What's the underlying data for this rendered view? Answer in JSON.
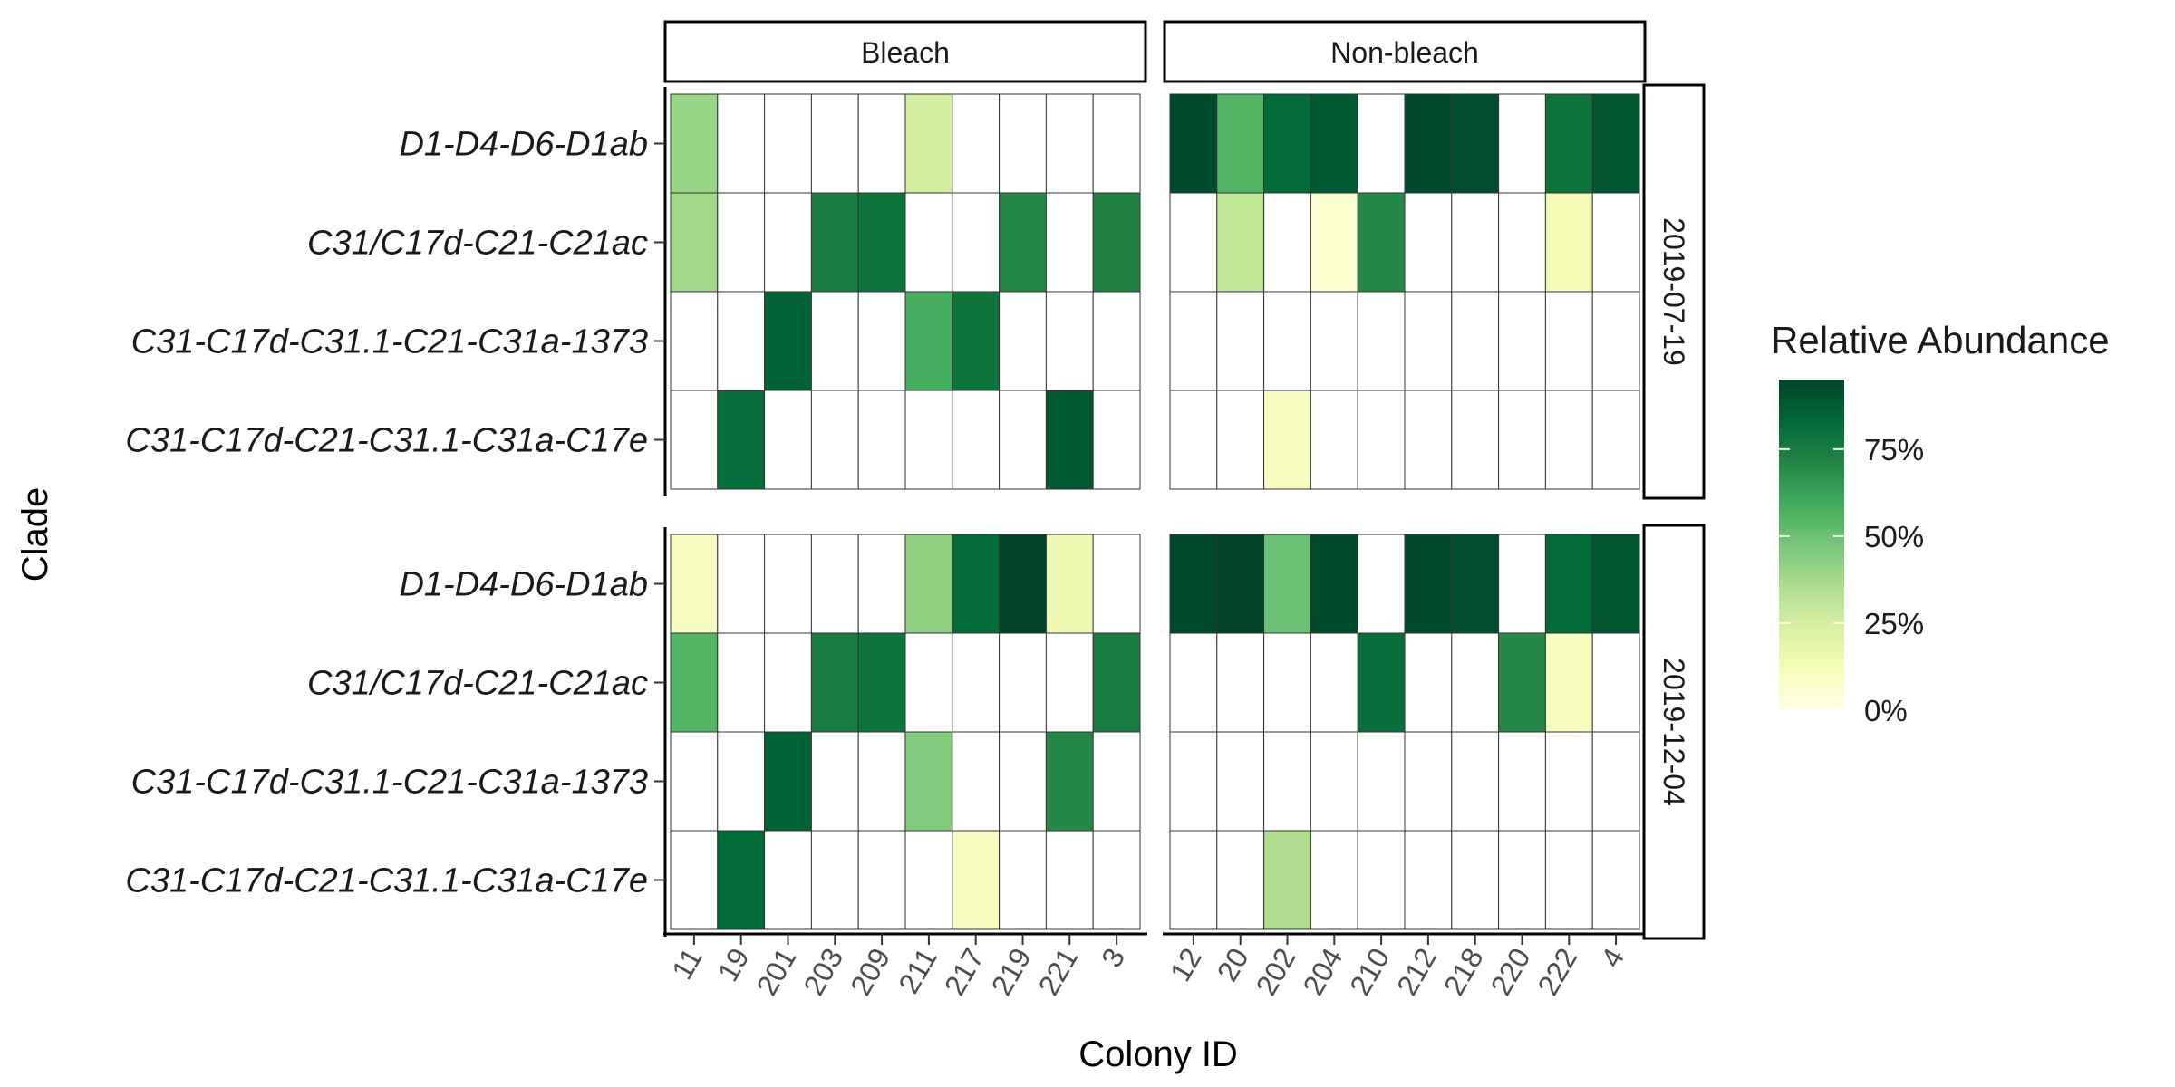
{
  "chart_data": {
    "type": "heatmap",
    "title": "",
    "xlabel": "Colony ID",
    "ylabel": "Clade",
    "facet_columns": [
      "Bleach",
      "Non-bleach"
    ],
    "facet_rows": [
      "2019-07-19",
      "2019-12-04"
    ],
    "colonies": {
      "Bleach": [
        "11",
        "19",
        "201",
        "203",
        "209",
        "211",
        "217",
        "219",
        "221",
        "3"
      ],
      "Non-bleach": [
        "12",
        "20",
        "202",
        "204",
        "210",
        "212",
        "218",
        "220",
        "222",
        "4"
      ]
    },
    "clades": [
      "D1-D4-D6-D1ab",
      "C31/C17d-C21-C21ac",
      "C31-C17d-C31.1-C21-C31a-1373",
      "C31-C17d-C21-C31.1-C31a-C17e"
    ],
    "values_percent": {
      "2019-07-19": {
        "Bleach": [
          [
            40,
            null,
            null,
            null,
            null,
            25,
            null,
            null,
            null,
            null
          ],
          [
            38,
            null,
            null,
            75,
            78,
            null,
            null,
            70,
            null,
            72
          ],
          [
            null,
            null,
            85,
            null,
            null,
            58,
            78,
            null,
            null,
            null
          ],
          [
            null,
            80,
            null,
            null,
            null,
            null,
            null,
            null,
            88,
            null
          ]
        ],
        "Non-bleach": [
          [
            93,
            55,
            82,
            88,
            null,
            93,
            92,
            null,
            78,
            90
          ],
          [
            null,
            30,
            null,
            6,
            70,
            null,
            null,
            null,
            13,
            null
          ],
          [
            null,
            null,
            null,
            null,
            null,
            null,
            null,
            null,
            null,
            null
          ],
          [
            null,
            null,
            10,
            null,
            null,
            null,
            null,
            null,
            null,
            null
          ]
        ]
      },
      "2019-12-04": {
        "Bleach": [
          [
            10,
            null,
            null,
            null,
            null,
            42,
            82,
            95,
            15,
            null
          ],
          [
            55,
            null,
            null,
            75,
            78,
            null,
            null,
            null,
            null,
            75
          ],
          [
            null,
            null,
            85,
            null,
            null,
            45,
            null,
            null,
            70,
            null
          ],
          [
            null,
            82,
            null,
            null,
            null,
            null,
            10,
            null,
            null,
            null
          ]
        ],
        "Non-bleach": [
          [
            93,
            95,
            50,
            93,
            null,
            93,
            92,
            null,
            82,
            90
          ],
          [
            null,
            null,
            null,
            null,
            80,
            null,
            null,
            70,
            10,
            null
          ],
          [
            null,
            null,
            null,
            null,
            null,
            null,
            null,
            null,
            null,
            null
          ],
          [
            null,
            null,
            35,
            null,
            null,
            null,
            null,
            null,
            null,
            null
          ]
        ]
      }
    },
    "legend": {
      "title": "Relative Abundance",
      "position": "right",
      "ticks": [
        "0%",
        "25%",
        "50%",
        "75%"
      ],
      "tick_values": [
        0,
        25,
        50,
        75
      ],
      "range": [
        0,
        95
      ]
    },
    "palette": [
      "#ffffe5",
      "#f7fcb9",
      "#d9f0a3",
      "#addd8e",
      "#78c679",
      "#41ab5d",
      "#238443",
      "#006837",
      "#004529"
    ],
    "empty_fill": "#ffffff",
    "grid_line_color": "#333333"
  }
}
